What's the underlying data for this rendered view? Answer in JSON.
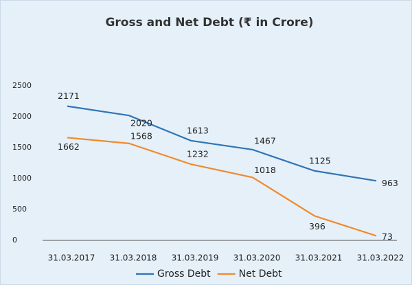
{
  "chart_data": {
    "type": "line",
    "title": "Gross and Net Debt (₹ in Crore)",
    "categories": [
      "31.03.2017",
      "31.03.2018",
      "31.03.2019",
      "31.03.2020",
      "31.03.2021",
      "31.03.2022"
    ],
    "series": [
      {
        "name": "Gross Debt",
        "color": "#2e75b6",
        "values": [
          2171,
          2020,
          1613,
          1467,
          1125,
          963
        ]
      },
      {
        "name": "Net Debt",
        "color": "#f08a2c",
        "values": [
          1662,
          1568,
          1232,
          1018,
          396,
          73
        ]
      }
    ],
    "ylim": [
      0,
      2500
    ],
    "yticks": [
      0,
      500,
      1000,
      1500,
      2000,
      2500
    ],
    "grid": false,
    "legend": "bottom"
  }
}
